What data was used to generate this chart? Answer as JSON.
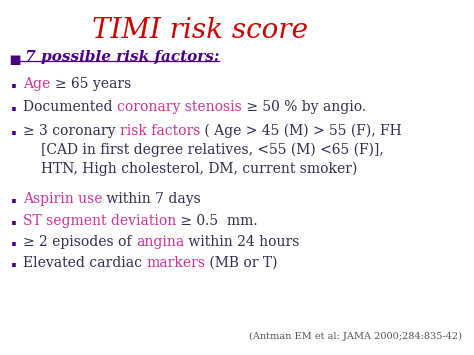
{
  "title": "TIMI risk score",
  "title_color": "#CC0000",
  "title_fontsize": 20,
  "bg_color": "#FFFFFF",
  "heading_marker": "▪",
  "heading_text": " 7 possible risk factors:",
  "heading_color": "#4B0082",
  "citation": "(Antman EM et al: JAMA 2000;284:835-42)",
  "citation_color": "#555555",
  "citation_fontsize": 7,
  "bullet_marker": "·",
  "bullet_color": "#4B0082",
  "dark_color": "#2F2F4F",
  "pink_color": "#CC3399",
  "bullet_fontsize": 10,
  "heading_fontsize": 11,
  "lines": [
    [
      {
        "text": "Age ",
        "color": "#CC3399"
      },
      {
        "text": "≥ 65 years",
        "color": "#2F2F4F"
      }
    ],
    [
      {
        "text": "Documented ",
        "color": "#2F2F4F"
      },
      {
        "text": "coronary stenosis",
        "color": "#CC3399"
      },
      {
        "text": " ≥ 50 % by angio.",
        "color": "#2F2F4F"
      }
    ],
    [
      {
        "text": "≥ 3 coronary ",
        "color": "#2F2F4F"
      },
      {
        "text": "risk factors",
        "color": "#CC3399"
      },
      {
        "text": " ( Age > 45 (M) > 55 (F), FH",
        "color": "#2F2F4F"
      }
    ],
    [
      {
        "text": "[CAD in first degree relatives, <55 (M) <65 (F)],",
        "color": "#2F2F4F",
        "indent": true
      }
    ],
    [
      {
        "text": "HTN, High cholesterol, DM, current smoker)",
        "color": "#2F2F4F",
        "indent": true
      }
    ],
    [
      {
        "text": "Aspirin use",
        "color": "#CC3399"
      },
      {
        "text": " within 7 days",
        "color": "#2F2F4F"
      }
    ],
    [
      {
        "text": "ST segment deviation",
        "color": "#CC3399"
      },
      {
        "text": " ≥ 0.5  mm.",
        "color": "#2F2F4F"
      }
    ],
    [
      {
        "text": "≥ 2 episodes of ",
        "color": "#2F2F4F"
      },
      {
        "text": "angina",
        "color": "#CC3399"
      },
      {
        "text": " within 24 hours",
        "color": "#2F2F4F"
      }
    ],
    [
      {
        "text": "Elevated cardiac ",
        "color": "#2F2F4F"
      },
      {
        "text": "markers",
        "color": "#CC3399"
      },
      {
        "text": " (MB or T)",
        "color": "#2F2F4F"
      }
    ]
  ],
  "line_bullets": [
    true,
    true,
    true,
    false,
    false,
    true,
    true,
    true,
    true
  ],
  "line_heights": [
    278,
    255,
    231,
    212,
    193,
    163,
    141,
    120,
    99
  ]
}
